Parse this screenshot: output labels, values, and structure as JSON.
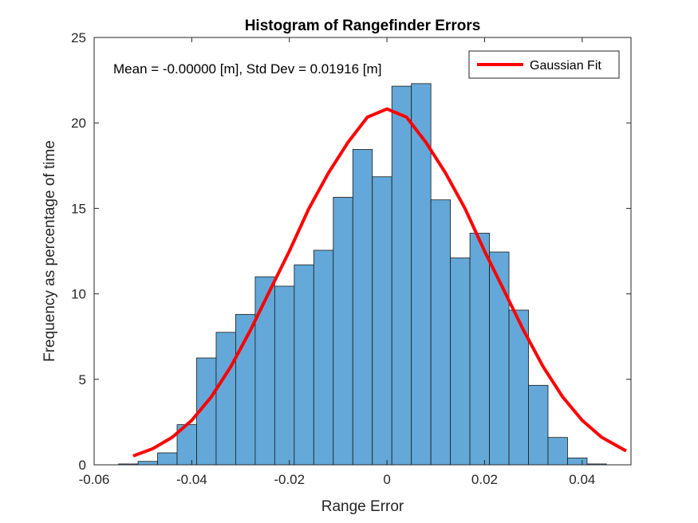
{
  "chart_data": {
    "type": "bar",
    "title": "Histogram of Rangefinder Errors",
    "xlabel": "Range Error",
    "ylabel": "Frequency as percentage of time",
    "annotation": "Mean = -0.00000 [m], Std Dev = 0.01916 [m]",
    "xlim": [
      -0.06,
      0.05
    ],
    "ylim": [
      0,
      25
    ],
    "xticks": [
      -0.06,
      -0.04,
      -0.02,
      0,
      0.02,
      0.04
    ],
    "xtick_labels": [
      "-0.06",
      "-0.04",
      "-0.02",
      "0",
      "0.02",
      "0.04"
    ],
    "yticks": [
      0,
      5,
      10,
      15,
      20,
      25
    ],
    "ytick_labels": [
      "0",
      "5",
      "10",
      "15",
      "20",
      "25"
    ],
    "grid": false,
    "legend_position": "top-right",
    "bin_edges": [
      -0.055,
      -0.051,
      -0.047,
      -0.043,
      -0.039,
      -0.035,
      -0.031,
      -0.027,
      -0.023,
      -0.019,
      -0.015,
      -0.011,
      -0.007,
      -0.003,
      0.001,
      0.005,
      0.009,
      0.013,
      0.017,
      0.021,
      0.025,
      0.029,
      0.033,
      0.037,
      0.041,
      0.045
    ],
    "series": [
      {
        "type": "histogram",
        "values": [
          0.05,
          0.2,
          0.7,
          2.35,
          6.25,
          7.75,
          8.8,
          11.0,
          10.45,
          11.7,
          12.55,
          15.65,
          18.45,
          16.85,
          22.15,
          22.3,
          15.5,
          12.1,
          13.55,
          12.45,
          9.05,
          4.65,
          1.6,
          0.4,
          0.05
        ],
        "color": "#63A8D8"
      },
      {
        "name": "Gaussian Fit",
        "type": "line",
        "color": "#FF0000",
        "x": [
          -0.052,
          -0.048,
          -0.044,
          -0.04,
          -0.036,
          -0.032,
          -0.028,
          -0.024,
          -0.02,
          -0.016,
          -0.012,
          -0.008,
          -0.004,
          0,
          0.004,
          0.008,
          0.012,
          0.016,
          0.02,
          0.024,
          0.028,
          0.032,
          0.036,
          0.04,
          0.044,
          0.049
        ],
        "y": [
          0.52,
          0.94,
          1.61,
          2.6,
          3.97,
          5.74,
          7.86,
          10.19,
          12.5,
          14.99,
          17.07,
          18.86,
          20.34,
          20.82,
          20.34,
          18.86,
          17.07,
          14.99,
          12.5,
          10.19,
          7.86,
          5.74,
          3.97,
          2.6,
          1.61,
          0.81
        ]
      }
    ]
  }
}
